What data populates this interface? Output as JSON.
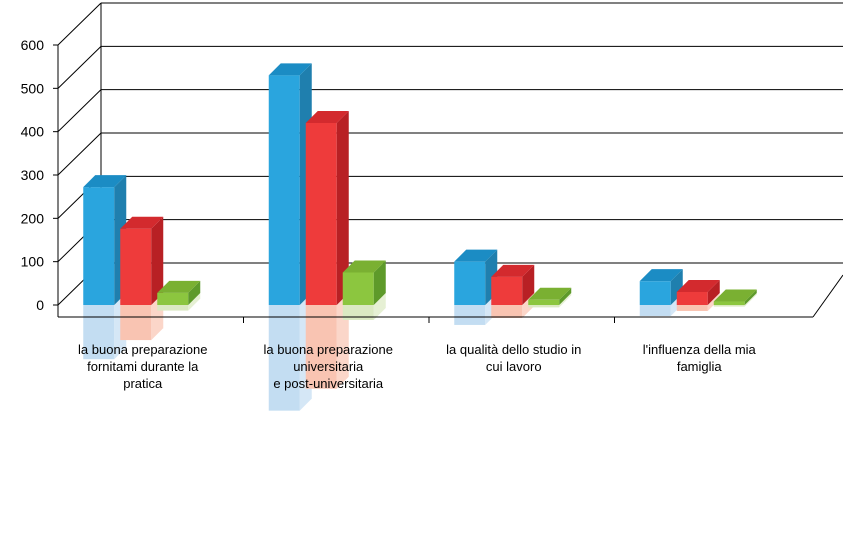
{
  "chart_data": {
    "type": "bar",
    "categories": [
      [
        "la buona preparazione",
        "fornitami durante la",
        "pratica"
      ],
      [
        "la buona preparazione",
        "universitaria",
        "e post-universitaria"
      ],
      [
        "la qualità dello studio in",
        "cui lavoro"
      ],
      [
        "l'influenza della mia",
        "famiglia"
      ]
    ],
    "series": [
      {
        "values": [
          272,
          530,
          100,
          55
        ],
        "color": "#2aa5de",
        "side_color": "#1f7fae",
        "top_color": "#1b8cc4",
        "reflection_color": "#c3ddf2"
      },
      {
        "values": [
          176,
          420,
          65,
          30
        ],
        "color": "#ee3b3b",
        "side_color": "#b82024",
        "top_color": "#d32a2e",
        "reflection_color": "#f9c4b2"
      },
      {
        "values": [
          28,
          75,
          12,
          8
        ],
        "color": "#8cc63f",
        "side_color": "#5e9a2a",
        "top_color": "#7ab032",
        "reflection_color": "#dbe9c2"
      }
    ],
    "ylim": [
      0,
      600
    ],
    "yticks": [
      0,
      100,
      200,
      300,
      400,
      500,
      600
    ],
    "grid": true,
    "legend": "none",
    "three_d": true,
    "reflection": true
  }
}
